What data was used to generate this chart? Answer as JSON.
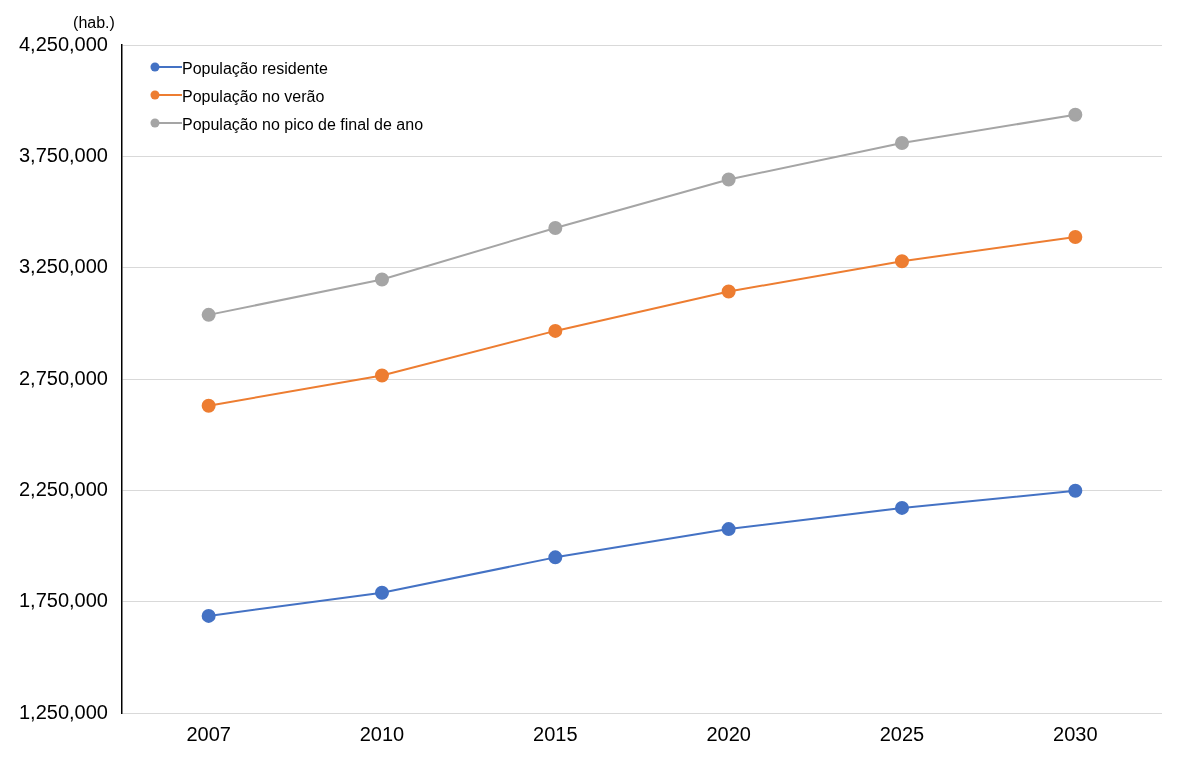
{
  "chart_data": {
    "type": "line",
    "ylabel": "(hab.)",
    "categories": [
      "2007",
      "2010",
      "2015",
      "2020",
      "2025",
      "2030"
    ],
    "series": [
      {
        "name": "População residente",
        "color": "#4472c4",
        "values": [
          1686000,
          1790000,
          1949000,
          2076000,
          2171000,
          2248000
        ]
      },
      {
        "name": "População no verão",
        "color": "#ed7d31",
        "values": [
          2630000,
          2766000,
          2966000,
          3143000,
          3279000,
          3388000
        ]
      },
      {
        "name": "População no pico de final de ano",
        "color": "#a5a5a5",
        "values": [
          3038000,
          3197000,
          3428000,
          3646000,
          3810000,
          3937000
        ]
      }
    ],
    "ylim": [
      1250000,
      4250000
    ],
    "yticks": [
      {
        "value": 1250000,
        "label": "1,250,000"
      },
      {
        "value": 1750000,
        "label": "1,750,000"
      },
      {
        "value": 2250000,
        "label": "2,250,000"
      },
      {
        "value": 2750000,
        "label": "2,750,000"
      },
      {
        "value": 3250000,
        "label": "3,250,000"
      },
      {
        "value": 3750000,
        "label": "3,750,000"
      },
      {
        "value": 4250000,
        "label": "4,250,000"
      }
    ],
    "grid": "y",
    "legend": "top left",
    "marker": "circle",
    "line_style": "solid"
  }
}
